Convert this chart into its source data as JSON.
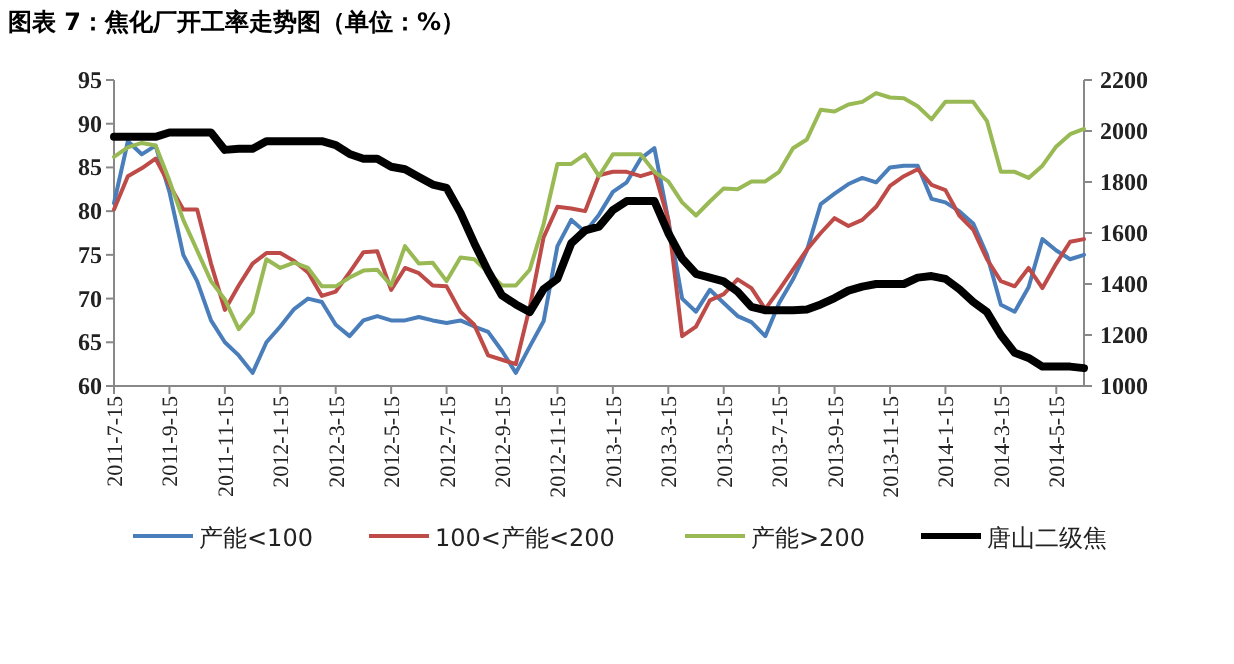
{
  "chart_data": {
    "type": "line",
    "title": "图表 7：焦化厂开工率走势图（单位：%）",
    "categories": [
      "2011-7-15",
      null,
      null,
      null,
      "2011-9-15",
      null,
      null,
      null,
      "2011-11-15",
      null,
      null,
      null,
      "2012-1-15",
      null,
      null,
      null,
      "2012-3-15",
      null,
      null,
      null,
      "2012-5-15",
      null,
      null,
      null,
      "2012-7-15",
      null,
      null,
      null,
      "2012-9-15",
      null,
      null,
      null,
      "2012-11-15",
      null,
      null,
      null,
      "2013-1-15",
      null,
      null,
      null,
      "2013-3-15",
      null,
      null,
      null,
      "2013-5-15",
      null,
      null,
      null,
      "2013-7-15",
      null,
      null,
      null,
      "2013-9-15",
      null,
      null,
      null,
      "2013-11-15",
      null,
      null,
      null,
      "2014-1-15",
      null,
      null,
      null,
      "2014-3-15",
      null,
      null,
      null,
      "2014-5-15",
      null,
      null
    ],
    "series": [
      {
        "name": "产能<100",
        "color": "#4a7ebb",
        "values": [
          80.9,
          88,
          86.5,
          87.5,
          82.2,
          75,
          72,
          67.5,
          65,
          63.5,
          61.5,
          65,
          66.8,
          68.8,
          70,
          69.6,
          67,
          65.7,
          67.5,
          68,
          67.5,
          67.5,
          67.9,
          67.5,
          67.2,
          67.5,
          66.8,
          66.2,
          64,
          61.5,
          64.5,
          67.4,
          76,
          79,
          77.6,
          79.6,
          82.2,
          83.3,
          86,
          87.2,
          79,
          70,
          68.5,
          71,
          69.5,
          68,
          67.3,
          65.7,
          69.5,
          72.2,
          75.5,
          80.8,
          82,
          83.1,
          83.8,
          83.3,
          85,
          85.2,
          85.2,
          81.4,
          81,
          80,
          78.6,
          75,
          69.3,
          68.5,
          71.3,
          76.8,
          75.5,
          74.5,
          75
        ]
      },
      {
        "name": "100<产能<200",
        "color": "#be4b48",
        "values": [
          80.2,
          84,
          84.9,
          86,
          83,
          80.2,
          80.2,
          74,
          68.7,
          71.5,
          74,
          75.2,
          75.2,
          74.3,
          73,
          70.3,
          70.8,
          73,
          75.3,
          75.4,
          71,
          73.5,
          72.9,
          71.5,
          71.4,
          68.5,
          67,
          63.5,
          63,
          62.5,
          69,
          77,
          80.5,
          80.3,
          80,
          84.1,
          84.5,
          84.5,
          84,
          84.5,
          79,
          65.7,
          66.8,
          69.8,
          70.5,
          72.2,
          71.2,
          68.8,
          71,
          73.3,
          75.6,
          77.5,
          79.2,
          78.3,
          79,
          80.5,
          82.9,
          84,
          84.8,
          83,
          82.4,
          79.5,
          77.9,
          74.5,
          72,
          71.4,
          73.5,
          71.2,
          74,
          76.5,
          76.8
        ]
      },
      {
        "name": "产能>200",
        "color": "#98b954",
        "values": [
          86.2,
          87.3,
          87.8,
          87.5,
          83.5,
          79,
          75.5,
          72,
          69.9,
          66.5,
          68.4,
          74.5,
          73.5,
          74.1,
          73.5,
          71.4,
          71.4,
          72.4,
          73.2,
          73.3,
          71.5,
          76,
          74,
          74.1,
          72,
          74.7,
          74.5,
          73,
          71.5,
          71.5,
          73.3,
          78.5,
          85.4,
          85.4,
          86.5,
          84,
          86.5,
          86.5,
          86.5,
          84.5,
          83.4,
          81,
          79.5,
          81.1,
          82.6,
          82.5,
          83.4,
          83.4,
          84.5,
          87.2,
          88.2,
          91.6,
          91.4,
          92.2,
          92.5,
          93.5,
          93,
          92.9,
          92,
          90.5,
          92.5,
          92.5,
          92.5,
          90.3,
          84.5,
          84.5,
          83.8,
          85.2,
          87.4,
          88.8,
          89.4
        ]
      },
      {
        "name": "唐山二级焦",
        "color": "#000000",
        "axis": "y2",
        "values": [
          1977,
          1977,
          1977,
          1977,
          1994,
          1994,
          1994,
          1994,
          1926,
          1930,
          1930,
          1960,
          1960,
          1960,
          1960,
          1960,
          1945,
          1910,
          1891,
          1891,
          1860,
          1850,
          1820,
          1790,
          1777,
          1680,
          1560,
          1450,
          1355,
          1320,
          1290,
          1380,
          1420,
          1560,
          1610,
          1625,
          1690,
          1725,
          1725,
          1725,
          1600,
          1500,
          1440,
          1425,
          1410,
          1370,
          1310,
          1297,
          1297,
          1297,
          1300,
          1320,
          1345,
          1374,
          1390,
          1400,
          1400,
          1400,
          1425,
          1431,
          1420,
          1380,
          1330,
          1290,
          1200,
          1130,
          1110,
          1076,
          1076,
          1076,
          1070
        ]
      }
    ],
    "ylim": [
      60,
      95
    ],
    "yticks": [
      60,
      65,
      70,
      75,
      80,
      85,
      90,
      95
    ],
    "y2lim": [
      1000,
      2200
    ],
    "y2ticks": [
      1000,
      1200,
      1400,
      1600,
      1800,
      2000,
      2200
    ],
    "legend": "bottom"
  }
}
